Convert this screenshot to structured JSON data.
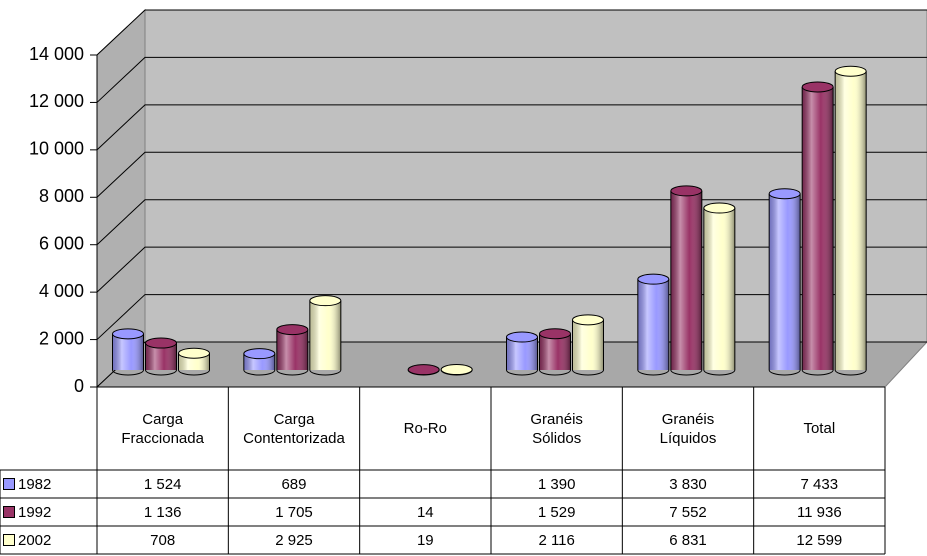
{
  "chart_data": {
    "type": "bar3d",
    "categories": [
      "Carga Fraccionada",
      "Carga Contentorizada",
      "Ro-Ro",
      "Granéis Sólidos",
      "Granéis Líquidos",
      "Total"
    ],
    "series": [
      {
        "name": "1982",
        "color": "#9999ff",
        "values": [
          1524,
          689,
          null,
          1390,
          3830,
          7433
        ],
        "value_labels": [
          "1 524",
          "689",
          null,
          "1 390",
          "3 830",
          "7 433"
        ]
      },
      {
        "name": "1992",
        "color": "#993366",
        "values": [
          1136,
          1705,
          14,
          1529,
          7552,
          11936
        ],
        "value_labels": [
          "1 136",
          "1 705",
          "14",
          "1 529",
          "7 552",
          "11 936"
        ]
      },
      {
        "name": "2002",
        "color": "#ffffcc",
        "values": [
          708,
          2925,
          19,
          2116,
          6831,
          12599
        ],
        "value_labels": [
          "708",
          "2 925",
          "19",
          "2 116",
          "6 831",
          "12 599"
        ]
      }
    ],
    "ylim": [
      0,
      14000
    ],
    "yticks": [
      0,
      {
        "value": 2000,
        "label": "2 000"
      },
      {
        "value": 4000,
        "label": "4 000"
      },
      {
        "value": 6000,
        "label": "6 000"
      },
      {
        "value": 8000,
        "label": "8 000"
      },
      {
        "value": 10000,
        "label": "10 000"
      },
      {
        "value": 12000,
        "label": "12 000"
      },
      {
        "value": 14000,
        "label": "14 000"
      }
    ],
    "grid": true
  }
}
